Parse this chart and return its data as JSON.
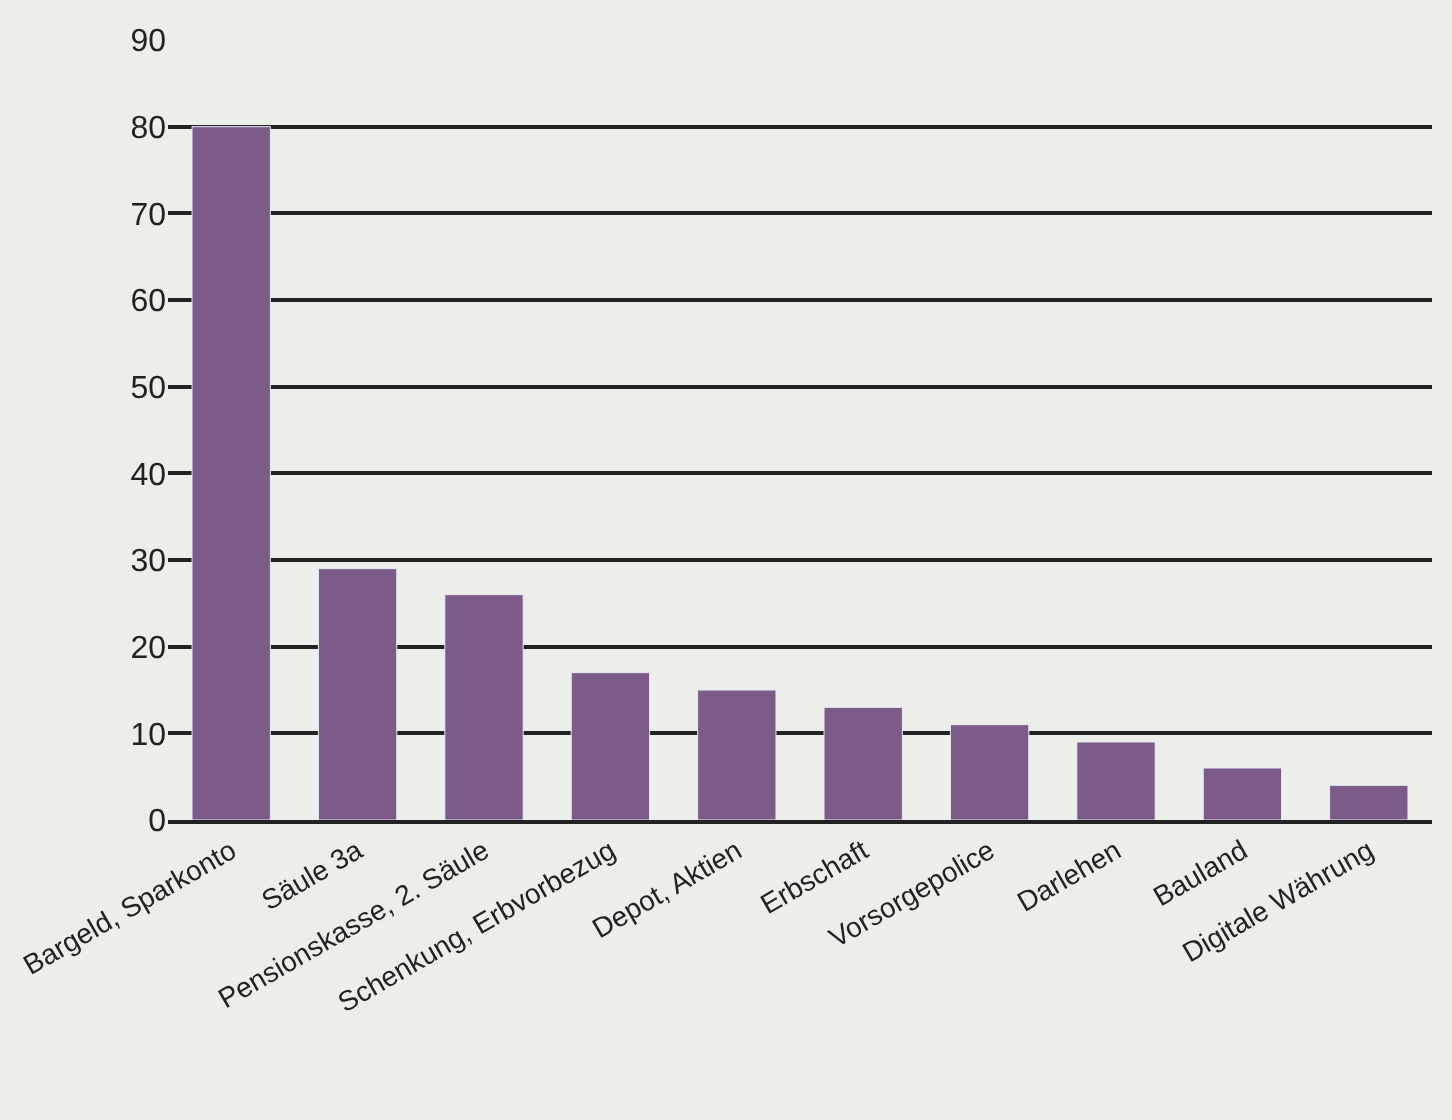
{
  "chart_data": {
    "type": "bar",
    "categories": [
      "Bargeld, Sparkonto",
      "Säule 3a",
      "Pensionskasse, 2. Säule",
      "Schenkung, Erbvorbezug",
      "Depot, Aktien",
      "Erbschaft",
      "Vorsorgepolice",
      "Darlehen",
      "Bauland",
      "Digitale Währung"
    ],
    "values": [
      80,
      29,
      26,
      17,
      15,
      13,
      11,
      9,
      6,
      4
    ],
    "color": "#7d5b88",
    "ylim": [
      0,
      90
    ],
    "yticks": [
      0,
      10,
      20,
      30,
      40,
      50,
      60,
      70,
      80,
      90
    ],
    "grid": "y",
    "legend": false
  }
}
